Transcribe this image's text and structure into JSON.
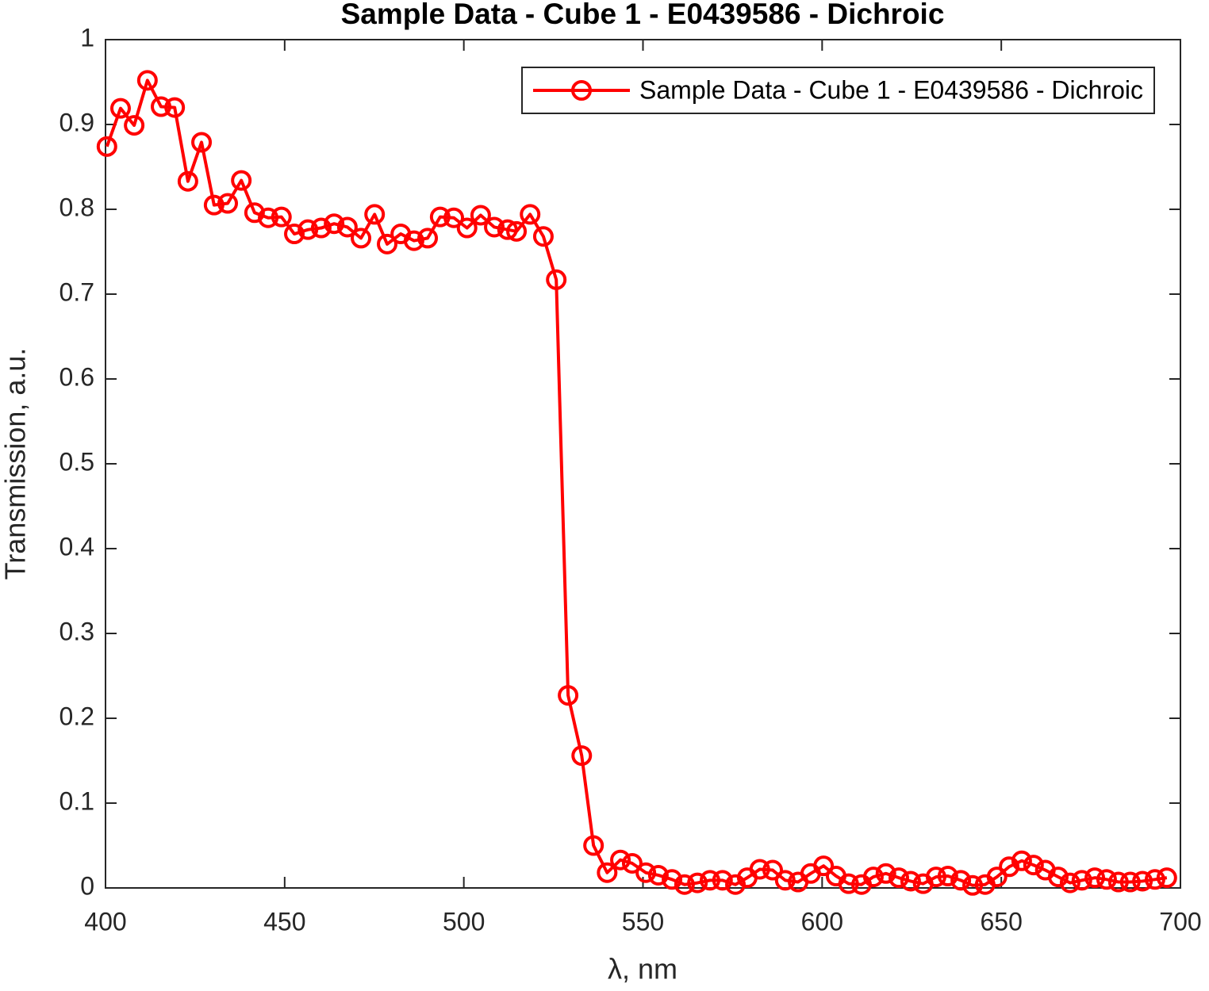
{
  "chart_data": {
    "type": "line",
    "title": "Sample Data - Cube 1 - E0439586 - Dichroic",
    "xlabel": "λ, nm",
    "ylabel": "Transmission, a.u.",
    "legend": "northeast",
    "grid": false,
    "x": [
      400.4,
      404.2,
      408.0,
      411.7,
      415.5,
      419.3,
      423.0,
      426.8,
      430.3,
      434.1,
      437.9,
      441.6,
      445.4,
      449.1,
      452.7,
      456.5,
      460.2,
      463.8,
      467.5,
      471.3,
      475.1,
      478.6,
      482.4,
      486.1,
      489.9,
      493.4,
      497.2,
      500.9,
      504.7,
      508.5,
      512.2,
      514.7,
      518.5,
      522.2,
      525.8,
      529.1,
      532.9,
      536.2,
      540.0,
      543.7,
      547.0,
      550.8,
      554.3,
      558.1,
      561.6,
      565.2,
      568.7,
      572.2,
      575.8,
      579.1,
      582.6,
      586.2,
      589.7,
      593.3,
      596.8,
      600.4,
      603.9,
      607.4,
      611.0,
      614.3,
      617.8,
      621.4,
      624.7,
      628.2,
      631.8,
      635.1,
      638.7,
      642.0,
      645.5,
      648.8,
      652.2,
      655.7,
      659.0,
      662.3,
      665.9,
      669.2,
      672.5,
      676.1,
      679.4,
      682.7,
      686.0,
      689.4,
      692.9,
      696.2
    ],
    "series": [
      {
        "name": "Sample Data - Cube 1 - E0439586 - Dichroic",
        "color": "#ff0000",
        "values": [
          0.874,
          0.919,
          0.899,
          0.952,
          0.921,
          0.92,
          0.833,
          0.879,
          0.805,
          0.807,
          0.834,
          0.796,
          0.79,
          0.791,
          0.771,
          0.776,
          0.778,
          0.783,
          0.779,
          0.766,
          0.794,
          0.759,
          0.771,
          0.763,
          0.766,
          0.791,
          0.79,
          0.778,
          0.793,
          0.779,
          0.776,
          0.774,
          0.794,
          0.768,
          0.717,
          0.227,
          0.156,
          0.05,
          0.018,
          0.033,
          0.029,
          0.018,
          0.015,
          0.01,
          0.004,
          0.006,
          0.009,
          0.009,
          0.004,
          0.012,
          0.022,
          0.021,
          0.009,
          0.007,
          0.017,
          0.026,
          0.014,
          0.005,
          0.004,
          0.013,
          0.017,
          0.012,
          0.008,
          0.005,
          0.013,
          0.014,
          0.009,
          0.003,
          0.004,
          0.013,
          0.025,
          0.032,
          0.027,
          0.021,
          0.013,
          0.006,
          0.009,
          0.012,
          0.01,
          0.007,
          0.007,
          0.008,
          0.01,
          0.012
        ]
      }
    ],
    "xlim": [
      400,
      700
    ],
    "xticks": [
      400,
      450,
      500,
      550,
      600,
      650,
      700
    ],
    "ylim": [
      0,
      1
    ],
    "yticks": [
      0,
      0.1,
      0.2,
      0.3,
      0.4,
      0.5,
      0.6,
      0.7,
      0.8,
      0.9,
      1
    ]
  }
}
